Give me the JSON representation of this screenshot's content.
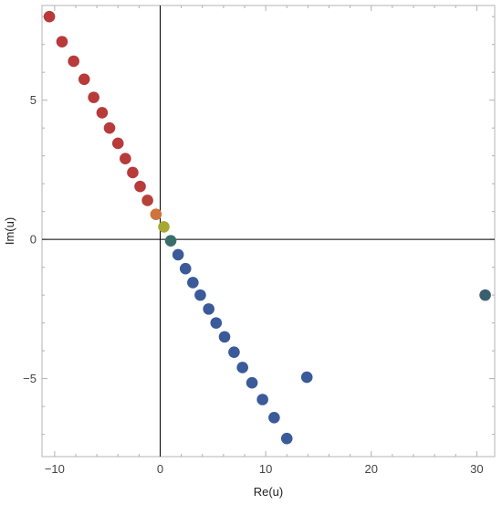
{
  "chart_data": {
    "type": "scatter",
    "title": "",
    "xlabel": "Re(u)",
    "ylabel": "Im(u)",
    "xlim": [
      -11.2,
      31.7
    ],
    "ylim": [
      -7.8,
      8.4
    ],
    "grid": false,
    "legend": "none",
    "x_ticks": [
      {
        "value": -10,
        "label": "−10"
      },
      {
        "value": 0,
        "label": "0"
      },
      {
        "value": 10,
        "label": "10"
      },
      {
        "value": 20,
        "label": "20"
      },
      {
        "value": 30,
        "label": "30"
      }
    ],
    "y_ticks": [
      {
        "value": -5,
        "label": "−5"
      },
      {
        "value": 0,
        "label": "0"
      },
      {
        "value": 5,
        "label": "5"
      }
    ],
    "minor_x_step": 2,
    "minor_y_step": 1,
    "series": [
      {
        "points": [
          {
            "x": -10.5,
            "y": 8.0,
            "color": "#b83a3a"
          },
          {
            "x": -9.3,
            "y": 7.1,
            "color": "#b83a3a"
          },
          {
            "x": -8.2,
            "y": 6.4,
            "color": "#b83a3a"
          },
          {
            "x": -7.2,
            "y": 5.75,
            "color": "#b83a3a"
          },
          {
            "x": -6.3,
            "y": 5.1,
            "color": "#b83a3a"
          },
          {
            "x": -5.5,
            "y": 4.55,
            "color": "#b83a3a"
          },
          {
            "x": -4.8,
            "y": 4.0,
            "color": "#b83a3a"
          },
          {
            "x": -4.0,
            "y": 3.45,
            "color": "#b83a3a"
          },
          {
            "x": -3.3,
            "y": 2.9,
            "color": "#b83a3a"
          },
          {
            "x": -2.6,
            "y": 2.4,
            "color": "#b83a3a"
          },
          {
            "x": -1.9,
            "y": 1.9,
            "color": "#b83a3a"
          },
          {
            "x": -1.2,
            "y": 1.4,
            "color": "#b8403a"
          },
          {
            "x": -0.4,
            "y": 0.9,
            "color": "#cf733c"
          },
          {
            "x": 0.35,
            "y": 0.45,
            "color": "#a5a832"
          },
          {
            "x": 1.0,
            "y": -0.05,
            "color": "#3a6e6a"
          },
          {
            "x": 1.7,
            "y": -0.55,
            "color": "#3a5a9a"
          },
          {
            "x": 2.4,
            "y": -1.05,
            "color": "#3a5a9a"
          },
          {
            "x": 3.1,
            "y": -1.55,
            "color": "#3a5a9a"
          },
          {
            "x": 3.8,
            "y": -2.0,
            "color": "#3a5a9a"
          },
          {
            "x": 4.6,
            "y": -2.5,
            "color": "#3a5a9a"
          },
          {
            "x": 5.3,
            "y": -3.0,
            "color": "#3a5a9a"
          },
          {
            "x": 6.1,
            "y": -3.5,
            "color": "#3a5a9a"
          },
          {
            "x": 7.0,
            "y": -4.05,
            "color": "#3a5a9a"
          },
          {
            "x": 7.8,
            "y": -4.6,
            "color": "#3a5a9a"
          },
          {
            "x": 8.7,
            "y": -5.15,
            "color": "#3a5a9a"
          },
          {
            "x": 9.7,
            "y": -5.75,
            "color": "#3a5a9a"
          },
          {
            "x": 10.8,
            "y": -6.4,
            "color": "#3a5a9a"
          },
          {
            "x": 12.0,
            "y": -7.15,
            "color": "#3a5a9a"
          },
          {
            "x": 13.9,
            "y": -4.95,
            "color": "#3a5a9a"
          },
          {
            "x": 30.8,
            "y": -2.0,
            "color": "#3a6070"
          }
        ]
      }
    ]
  }
}
